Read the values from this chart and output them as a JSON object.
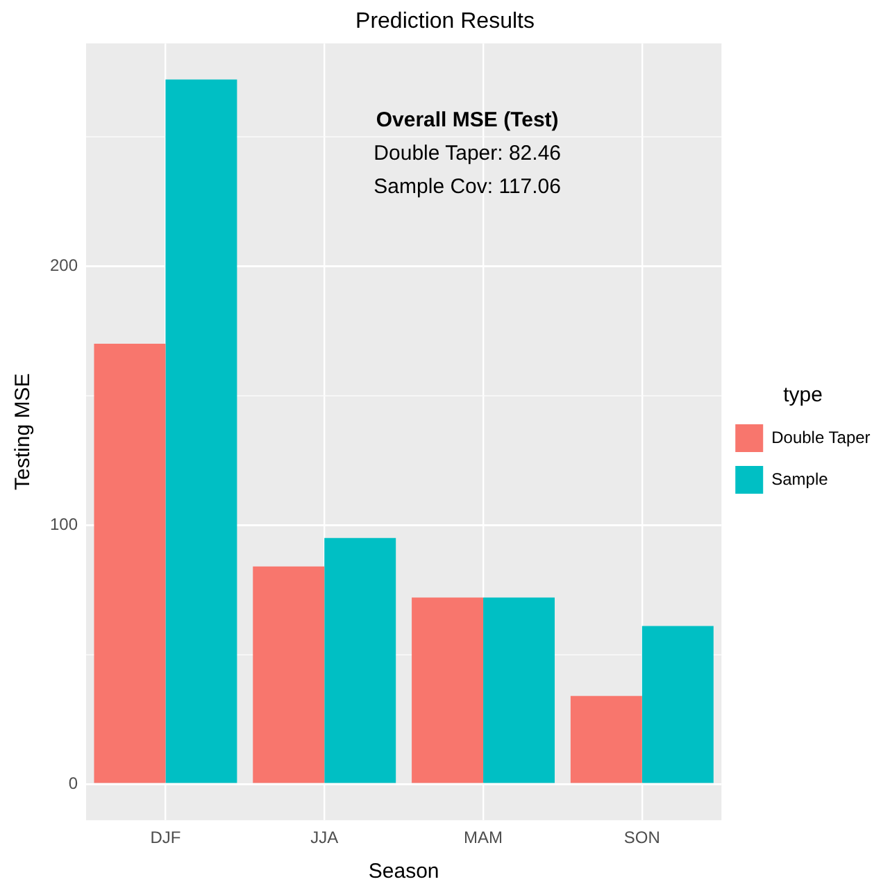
{
  "chart_data": {
    "type": "bar",
    "title": "Prediction Results",
    "xlabel": "Season",
    "ylabel": "Testing MSE",
    "legend_title": "type",
    "categories": [
      "DJF",
      "JJA",
      "MAM",
      "SON"
    ],
    "series": [
      {
        "name": "Double Taper",
        "color": "#f8766d",
        "values": [
          170,
          84,
          72,
          34
        ]
      },
      {
        "name": "Sample",
        "color": "#00bfc4",
        "values": [
          272,
          95,
          72,
          61
        ]
      }
    ],
    "ylim": [
      -14,
      286
    ],
    "yticks": [
      0,
      {
        "value": 50,
        "label": null
      },
      100,
      {
        "value": 150,
        "label": null
      },
      200,
      {
        "value": 250,
        "label": null
      }
    ],
    "grid": true,
    "legend": "right",
    "annotations": [
      "Overall MSE (Test)",
      "Double Taper: 82.46",
      "Sample Cov: 117.06"
    ]
  }
}
